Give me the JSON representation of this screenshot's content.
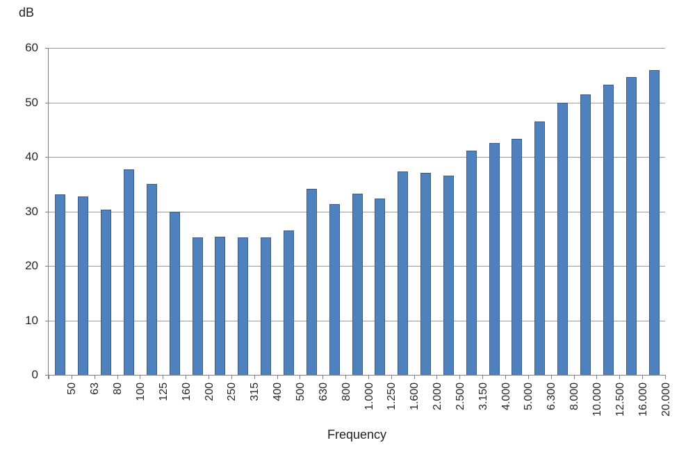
{
  "chart_data": {
    "type": "bar",
    "title": "",
    "ylabel": "dB",
    "xlabel": "Frequency",
    "categories": [
      "50",
      "63",
      "80",
      "100",
      "125",
      "160",
      "200",
      "250",
      "315",
      "400",
      "500",
      "630",
      "800",
      "1.000",
      "1.250",
      "1.600",
      "2.000",
      "2.500",
      "3.150",
      "4.000",
      "5.000",
      "6.300",
      "8.000",
      "10.000",
      "12.500",
      "16.000",
      "20.000"
    ],
    "values": [
      33.1,
      32.8,
      30.3,
      37.7,
      35.0,
      30.0,
      25.2,
      25.4,
      25.2,
      25.2,
      26.5,
      34.1,
      31.3,
      33.3,
      32.4,
      37.3,
      37.1,
      36.5,
      41.2,
      42.5,
      43.3,
      46.5,
      50.0,
      51.5,
      53.2,
      54.6,
      55.9
    ],
    "ylim": [
      0,
      60
    ],
    "ytick_interval": 10,
    "yticks": [
      "0",
      "10",
      "20",
      "30",
      "40",
      "50",
      "60"
    ],
    "grid": "horizontal",
    "legend": "none",
    "colors": {
      "bar_fill": "#4f81bd",
      "bar_border": "#385d8a",
      "gridline": "#9a9a9a",
      "axis": "#7f7f7f",
      "text": "#262626"
    }
  }
}
